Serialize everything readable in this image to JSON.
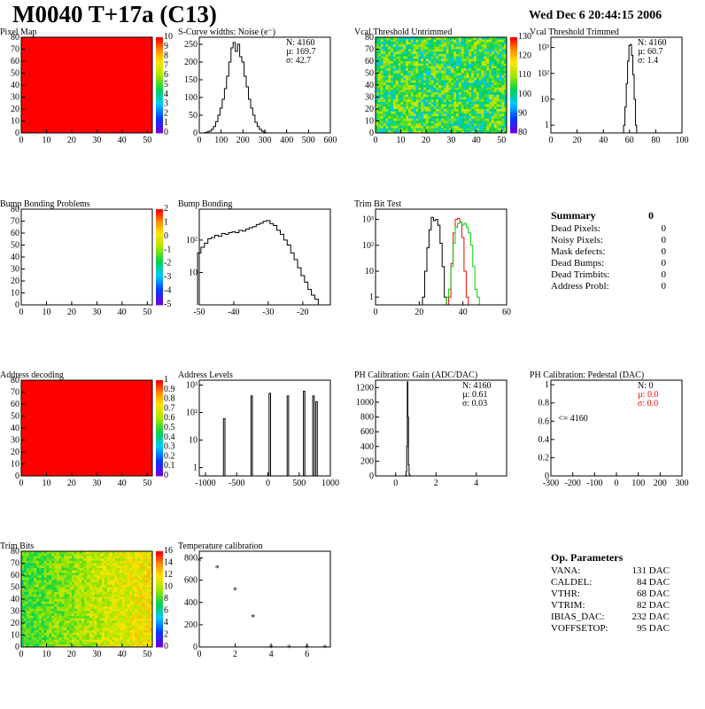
{
  "header": {
    "title": "M0040 T+17a (C13)",
    "date": "Wed Dec  6 20:44:15 2006"
  },
  "colors": {
    "heat_red": "#ff0000",
    "trim_red": "#ff0000",
    "trim_green": "#00cc00",
    "stat_red": "#ff0000"
  },
  "chart_data": [
    {
      "id": "pixel-map",
      "type": "heatmap",
      "title": "Pixel Map",
      "x_ticks": [
        "0",
        "10",
        "20",
        "30",
        "40",
        "50"
      ],
      "y_ticks": [
        "0",
        "10",
        "20",
        "30",
        "40",
        "50",
        "60",
        "70",
        "80"
      ],
      "palette_ticks": [
        "0",
        "1",
        "2",
        "3",
        "4",
        "5",
        "6",
        "7",
        "8",
        "9",
        "10"
      ],
      "xlim": [
        0,
        52
      ],
      "ylim": [
        0,
        80
      ],
      "zlim": [
        0,
        10
      ],
      "fill_value": 10,
      "fill": "uniform-red"
    },
    {
      "id": "scurve-widths",
      "type": "bar",
      "title": "S-Curve widths: Noise (e⁻)",
      "x_ticks": [
        "0",
        "100",
        "200",
        "300",
        "400",
        "500",
        "600"
      ],
      "y_ticks": [
        "0",
        "50",
        "100",
        "150",
        "200",
        "250"
      ],
      "xlim": [
        0,
        600
      ],
      "ylim": [
        0,
        270
      ],
      "stats": [
        "N: 4160",
        "µ: 169.7",
        "σ: 42.7"
      ],
      "x": [
        30,
        40,
        50,
        60,
        70,
        80,
        90,
        100,
        110,
        120,
        130,
        140,
        150,
        160,
        170,
        180,
        190,
        200,
        210,
        220,
        230,
        240,
        250,
        260,
        270,
        280,
        290,
        300
      ],
      "values": [
        1,
        3,
        5,
        10,
        18,
        32,
        50,
        70,
        95,
        125,
        160,
        200,
        240,
        255,
        230,
        250,
        215,
        200,
        160,
        130,
        95,
        70,
        50,
        30,
        18,
        10,
        5,
        2
      ]
    },
    {
      "id": "vcal-untrimmed",
      "type": "heatmap",
      "title": "Vcal Threshold Untrimmed",
      "x_ticks": [
        "0",
        "10",
        "20",
        "30",
        "40",
        "50"
      ],
      "y_ticks": [
        "0",
        "10",
        "20",
        "30",
        "40",
        "50",
        "60",
        "70",
        "80"
      ],
      "palette_ticks": [
        "80",
        "90",
        "100",
        "110",
        "120",
        "130"
      ],
      "xlim": [
        0,
        52
      ],
      "ylim": [
        0,
        80
      ],
      "zlim": [
        75,
        135
      ],
      "fill": "noise-blue-green"
    },
    {
      "id": "vcal-trimmed",
      "type": "bar",
      "title": "Vcal Threshold Trimmed",
      "yscale": "log",
      "x_ticks": [
        "0",
        "20",
        "40",
        "60",
        "80",
        "100"
      ],
      "y_ticks": [
        "1",
        "10",
        "10²",
        "10³"
      ],
      "xlim": [
        0,
        100
      ],
      "ylim_log": [
        0.5,
        2500
      ],
      "stats": [
        "N: 4160",
        "µ: 60.7",
        "σ:  1.4"
      ],
      "x": [
        56,
        57,
        58,
        59,
        60,
        61,
        62,
        63,
        64,
        65
      ],
      "values": [
        1,
        5,
        40,
        300,
        1200,
        1300,
        500,
        90,
        10,
        1
      ]
    },
    {
      "id": "bump-problems",
      "type": "heatmap",
      "title": "Bump Bonding Problems",
      "x_ticks": [
        "0",
        "10",
        "20",
        "30",
        "40",
        "50"
      ],
      "y_ticks": [
        "0",
        "10",
        "20",
        "30",
        "40",
        "50",
        "60",
        "70",
        "80"
      ],
      "palette_ticks": [
        "-5",
        "-4",
        "-3",
        "-2",
        "-1",
        "0",
        "1",
        "2"
      ],
      "xlim": [
        0,
        52
      ],
      "ylim": [
        0,
        80
      ],
      "zlim": [
        -5,
        2
      ],
      "fill": "empty"
    },
    {
      "id": "bump-bonding",
      "type": "bar",
      "title": "Bump Bonding",
      "yscale": "log",
      "x_ticks": [
        "-50",
        "-40",
        "-30",
        "-20"
      ],
      "y_ticks": [
        "10",
        "10²"
      ],
      "xlim": [
        -50,
        -12
      ],
      "ylim_log": [
        1,
        900
      ],
      "x": [
        -50,
        -49,
        -48,
        -47,
        -46,
        -45,
        -44,
        -43,
        -42,
        -41,
        -40,
        -39,
        -38,
        -37,
        -36,
        -35,
        -34,
        -33,
        -32,
        -31,
        -30,
        -29,
        -28,
        -27,
        -26,
        -25,
        -24,
        -23,
        -22,
        -21,
        -20,
        -19,
        -18,
        -17,
        -16,
        -15
      ],
      "values": [
        40,
        60,
        80,
        110,
        120,
        140,
        130,
        160,
        150,
        170,
        180,
        170,
        200,
        190,
        220,
        240,
        260,
        300,
        330,
        380,
        400,
        320,
        280,
        200,
        150,
        100,
        70,
        40,
        25,
        14,
        8,
        5,
        3,
        2,
        1.5,
        1
      ]
    },
    {
      "id": "trim-bit-test",
      "type": "line",
      "title": "Trim Bit Test",
      "yscale": "log",
      "x_ticks": [
        "0",
        "20",
        "40",
        "60"
      ],
      "y_ticks": [
        "1",
        "10",
        "10²",
        "10³"
      ],
      "xlim": [
        0,
        60
      ],
      "ylim_log": [
        0.5,
        2500
      ],
      "series": [
        {
          "color": "#000000",
          "x": [
            22,
            23,
            24,
            25,
            26,
            27,
            28,
            29,
            30,
            31,
            32
          ],
          "values": [
            1,
            10,
            80,
            400,
            1200,
            900,
            1000,
            600,
            120,
            15,
            1
          ]
        },
        {
          "color": "#ff0000",
          "x": [
            34,
            35,
            36,
            37,
            38,
            39,
            40,
            41,
            42
          ],
          "values": [
            1,
            20,
            300,
            1000,
            1100,
            800,
            200,
            10,
            1
          ]
        },
        {
          "color": "#00cc00",
          "x": [
            33,
            34,
            35,
            36,
            37,
            38,
            39,
            40,
            41,
            42,
            43,
            44,
            45,
            46,
            47
          ],
          "values": [
            1,
            2,
            15,
            120,
            500,
            700,
            800,
            600,
            700,
            500,
            300,
            100,
            15,
            2,
            1
          ]
        }
      ]
    },
    {
      "id": "address-decoding",
      "type": "heatmap",
      "title": "Address decoding",
      "x_ticks": [
        "0",
        "10",
        "20",
        "30",
        "40",
        "50"
      ],
      "y_ticks": [
        "0",
        "10",
        "20",
        "30",
        "40",
        "50",
        "60",
        "70",
        "80"
      ],
      "palette_ticks": [
        "0",
        "0.1",
        "0.2",
        "0.3",
        "0.4",
        "0.5",
        "0.6",
        "0.7",
        "0.8",
        "0.9",
        "1"
      ],
      "xlim": [
        0,
        52
      ],
      "ylim": [
        0,
        80
      ],
      "zlim": [
        0,
        1
      ],
      "fill_value": 1,
      "fill": "uniform-red"
    },
    {
      "id": "address-levels",
      "type": "bar",
      "title": "Address Levels",
      "yscale": "log",
      "x_ticks": [
        "-1000",
        "-500",
        "0",
        "500",
        "1000"
      ],
      "y_ticks": [
        "1",
        "10",
        "10²",
        "10³"
      ],
      "xlim": [
        -1100,
        1000
      ],
      "ylim_log": [
        0.5,
        1500
      ],
      "peaks": [
        -700,
        -260,
        30,
        320,
        580,
        730,
        780
      ],
      "peak_heights": [
        60,
        400,
        500,
        400,
        600,
        400,
        250
      ]
    },
    {
      "id": "ph-gain",
      "type": "bar",
      "title": "PH Calibration: Gain (ADC/DAC)",
      "x_ticks": [
        "0",
        "2",
        "4"
      ],
      "y_ticks": [
        "0",
        "200",
        "400",
        "600",
        "800",
        "1000",
        "1200"
      ],
      "xlim": [
        -1,
        5.5
      ],
      "ylim": [
        0,
        1300
      ],
      "stats": [
        "N: 4160",
        "µ: 0.61",
        "σ: 0.03"
      ],
      "x": [
        0.5,
        0.53,
        0.56,
        0.59,
        0.62,
        0.65,
        0.68,
        0.71
      ],
      "values": [
        5,
        60,
        400,
        1280,
        800,
        150,
        20,
        2
      ]
    },
    {
      "id": "ph-pedestal",
      "type": "bar",
      "title": "PH Calibration: Pedestal (DAC)",
      "x_ticks": [
        "-300",
        "-200",
        "-100",
        "0",
        "100",
        "200",
        "300"
      ],
      "y_ticks": [
        "0",
        "0.2",
        "0.4",
        "0.6",
        "0.8",
        "1"
      ],
      "xlim": [
        -300,
        300
      ],
      "ylim": [
        0,
        1.05
      ],
      "stats": [
        "N:    0",
        "µ:  0.0",
        "σ:  0.0"
      ],
      "annotation": "<= 4160"
    },
    {
      "id": "trim-bits",
      "type": "heatmap",
      "title": "Trim Bits",
      "x_ticks": [
        "0",
        "10",
        "20",
        "30",
        "40",
        "50"
      ],
      "y_ticks": [
        "0",
        "10",
        "20",
        "30",
        "40",
        "50",
        "60",
        "70",
        "80"
      ],
      "palette_ticks": [
        "0",
        "2",
        "4",
        "6",
        "8",
        "10",
        "12",
        "14",
        "16"
      ],
      "xlim": [
        0,
        52
      ],
      "ylim": [
        0,
        80
      ],
      "zlim": [
        0,
        16
      ],
      "fill": "noise-green-orange"
    },
    {
      "id": "temperature-calibration",
      "type": "scatter",
      "title": "Temperature calibration",
      "x_ticks": [
        "0",
        "2",
        "4",
        "6"
      ],
      "y_ticks": [
        "0",
        "200",
        "400",
        "600",
        "800"
      ],
      "xlim": [
        0,
        7.3
      ],
      "ylim": [
        0,
        860
      ],
      "x": [
        0,
        1,
        2,
        3,
        4,
        5,
        6,
        7
      ],
      "values": [
        785,
        720,
        520,
        280,
        5,
        5,
        5,
        5
      ]
    }
  ],
  "summary": {
    "title": "Summary",
    "total": "0",
    "rows": [
      {
        "label": "Dead Pixels:",
        "value": "0"
      },
      {
        "label": "Noisy Pixels:",
        "value": "0"
      },
      {
        "label": "Mask defects:",
        "value": "0"
      },
      {
        "label": "Dead Bumps:",
        "value": "0"
      },
      {
        "label": "Dead Trimbits:",
        "value": "0"
      },
      {
        "label": "Address Probl:",
        "value": "0"
      }
    ]
  },
  "op_params": {
    "title": "Op. Parameters",
    "rows": [
      {
        "label": "VANA:",
        "value": "131 DAC"
      },
      {
        "label": "CALDEL:",
        "value": "84 DAC"
      },
      {
        "label": "VTHR:",
        "value": "68 DAC"
      },
      {
        "label": "VTRIM:",
        "value": "82 DAC"
      },
      {
        "label": "IBIAS_DAC:",
        "value": "232 DAC"
      },
      {
        "label": "VOFFSETOP:",
        "value": "95 DAC"
      }
    ]
  }
}
